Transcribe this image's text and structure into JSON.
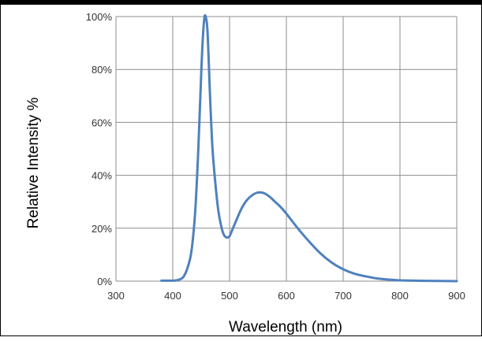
{
  "chart_data": {
    "type": "line",
    "title": "",
    "xlabel": "Wavelength (nm)",
    "ylabel": "Relative Intensity %",
    "xlim": [
      300,
      900
    ],
    "ylim": [
      0,
      100
    ],
    "x_ticks": [
      300,
      400,
      500,
      600,
      700,
      800,
      900
    ],
    "x_tick_labels": [
      "300",
      "400",
      "500",
      "600",
      "700",
      "800",
      "900"
    ],
    "y_ticks": [
      0,
      20,
      40,
      60,
      80,
      100
    ],
    "y_tick_labels": [
      "0%",
      "20%",
      "40%",
      "60%",
      "80%",
      "100%"
    ],
    "grid": true,
    "legend": "none",
    "colors": {
      "line": "#4f81bd",
      "grid": "#8c8c8c",
      "frame": "#000000"
    },
    "series": [
      {
        "x": [
          380,
          400,
          410,
          420,
          430,
          435,
          440,
          445,
          450,
          453,
          456,
          459,
          461,
          463,
          466,
          470,
          475,
          480,
          485,
          490,
          495,
          500,
          505,
          510,
          520,
          530,
          540,
          550,
          560,
          570,
          580,
          590,
          600,
          620,
          640,
          660,
          680,
          700,
          720,
          740,
          760,
          780,
          800,
          850,
          900
        ],
        "y": [
          0.2,
          0.2,
          0.5,
          2,
          8,
          15,
          28,
          50,
          78,
          92,
          100,
          99,
          95,
          85,
          68,
          50,
          37,
          27,
          21,
          17.5,
          16.5,
          17,
          19.5,
          22,
          27,
          30.5,
          32.5,
          33.5,
          33.3,
          32,
          30,
          28,
          25.5,
          20,
          15,
          10.5,
          7,
          4.5,
          2.8,
          1.8,
          1.0,
          0.6,
          0.3,
          0.1,
          0
        ]
      }
    ]
  }
}
